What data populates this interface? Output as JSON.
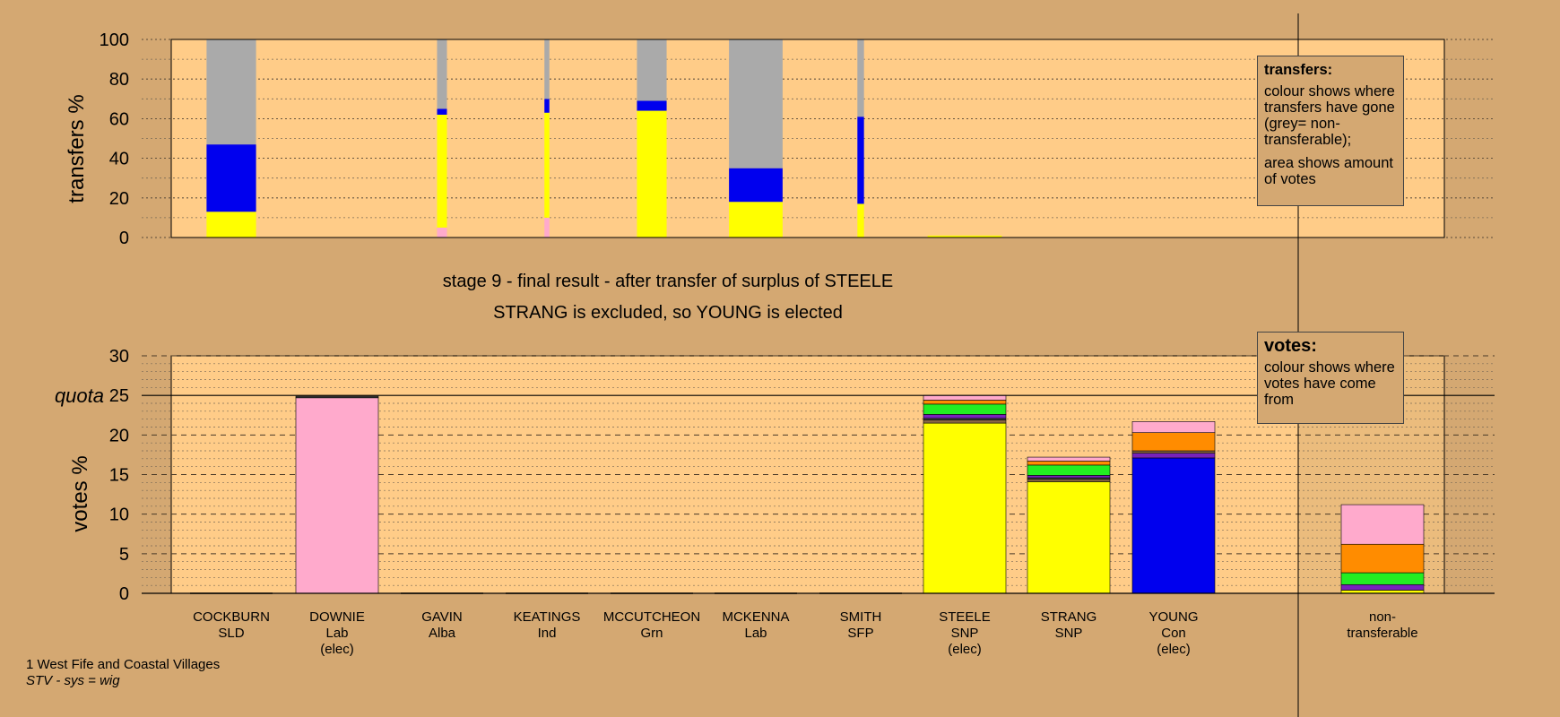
{
  "stage": {
    "title": "stage 9 - final result - after transfer of surplus of STEELE",
    "subtitle": "STRANG is excluded, so YOUNG is elected"
  },
  "legends": {
    "transfers": {
      "title": "transfers:",
      "para1": "colour shows where transfers have gone (grey= non-transferable);",
      "para2": "area shows amount of votes"
    },
    "votes": {
      "title": "votes:",
      "para1": "colour shows where votes have come from"
    }
  },
  "footer": {
    "ward": "1 West Fife and Coastal Villages",
    "system": "STV - sys = wig"
  },
  "colors": {
    "background": "#d4a872",
    "plot": "#ffcc88",
    "SNP": "#ffff00",
    "Lab": "#ffaacc",
    "Con": "#0000ee",
    "Grn": "#22ee22",
    "SLD": "#ff8c00",
    "Alba": "#7722bb",
    "Ind": "#886644",
    "SFP": "#444444",
    "nontransferable": "#aaaaaa"
  },
  "chart_data": [
    {
      "type": "bar",
      "name": "transfers",
      "ylabel": "transfers %",
      "ylim": [
        0,
        100
      ],
      "yticks": [
        0,
        20,
        40,
        60,
        80,
        100
      ],
      "grid": true,
      "columns": [
        {
          "name": "COCKBURN",
          "width_share": 0.6,
          "segments": [
            {
              "from": "SNP",
              "value": 13
            },
            {
              "from": "Con",
              "value": 34
            },
            {
              "from": "nontransferable",
              "value": 53
            }
          ]
        },
        {
          "name": "GAVIN",
          "width_share": 0.12,
          "segments": [
            {
              "from": "Lab",
              "value": 5
            },
            {
              "from": "SNP",
              "value": 57
            },
            {
              "from": "Con",
              "value": 3
            },
            {
              "from": "nontransferable",
              "value": 35
            }
          ]
        },
        {
          "name": "KEATINGS",
          "width_share": 0.06,
          "segments": [
            {
              "from": "Lab",
              "value": 10
            },
            {
              "from": "SNP",
              "value": 53
            },
            {
              "from": "Con",
              "value": 7
            },
            {
              "from": "nontransferable",
              "value": 30
            }
          ]
        },
        {
          "name": "MCCUTCHEON",
          "width_share": 0.36,
          "segments": [
            {
              "from": "SNP",
              "value": 64
            },
            {
              "from": "Con",
              "value": 5
            },
            {
              "from": "nontransferable",
              "value": 31
            }
          ]
        },
        {
          "name": "MCKENNA",
          "width_share": 0.65,
          "segments": [
            {
              "from": "SNP",
              "value": 18
            },
            {
              "from": "Con",
              "value": 17
            },
            {
              "from": "nontransferable",
              "value": 65
            }
          ]
        },
        {
          "name": "SMITH",
          "width_share": 0.08,
          "segments": [
            {
              "from": "SNP",
              "value": 17
            },
            {
              "from": "Con",
              "value": 44
            },
            {
              "from": "nontransferable",
              "value": 39
            }
          ]
        },
        {
          "name": "STEELE",
          "width_share": 0.9,
          "segments": [
            {
              "from": "SNP",
              "value": 1
            }
          ]
        }
      ]
    },
    {
      "type": "bar",
      "name": "votes",
      "ylabel": "votes %",
      "ylim": [
        0,
        30
      ],
      "yticks": [
        0,
        5,
        10,
        15,
        20,
        25,
        30
      ],
      "quota": 25,
      "quota_label": "quota",
      "candidates": [
        {
          "name": "COCKBURN",
          "party": "SLD",
          "note": "",
          "segments": []
        },
        {
          "name": "DOWNIE",
          "party": "Lab",
          "note": "(elec)",
          "segments": [
            {
              "from": "Lab",
              "value": 24.7
            },
            {
              "from": "SFP",
              "value": 0.2
            }
          ]
        },
        {
          "name": "GAVIN",
          "party": "Alba",
          "note": "",
          "segments": []
        },
        {
          "name": "KEATINGS",
          "party": "Ind",
          "note": "",
          "segments": []
        },
        {
          "name": "MCCUTCHEON",
          "party": "Grn",
          "note": "",
          "segments": []
        },
        {
          "name": "MCKENNA",
          "party": "Lab",
          "note": "",
          "segments": []
        },
        {
          "name": "SMITH",
          "party": "SFP",
          "note": "",
          "segments": []
        },
        {
          "name": "STEELE",
          "party": "SNP",
          "note": "(elec)",
          "segments": [
            {
              "from": "SNP",
              "value": 21.5
            },
            {
              "from": "Ind",
              "value": 0.4
            },
            {
              "from": "SFP",
              "value": 0.2
            },
            {
              "from": "Alba",
              "value": 0.5
            },
            {
              "from": "Grn",
              "value": 1.3
            },
            {
              "from": "SLD",
              "value": 0.5
            },
            {
              "from": "Lab",
              "value": 0.6
            }
          ]
        },
        {
          "name": "STRANG",
          "party": "SNP",
          "note": "",
          "segments": [
            {
              "from": "SNP",
              "value": 14.1
            },
            {
              "from": "Ind",
              "value": 0.3
            },
            {
              "from": "SFP",
              "value": 0.2
            },
            {
              "from": "Alba",
              "value": 0.3
            },
            {
              "from": "Grn",
              "value": 1.3
            },
            {
              "from": "SLD",
              "value": 0.5
            },
            {
              "from": "Lab",
              "value": 0.5
            }
          ]
        },
        {
          "name": "YOUNG",
          "party": "Con",
          "note": "(elec)",
          "segments": [
            {
              "from": "Con",
              "value": 17.1
            },
            {
              "from": "Alba",
              "value": 0.6
            },
            {
              "from": "Ind",
              "value": 0.3
            },
            {
              "from": "SLD",
              "value": 2.3
            },
            {
              "from": "Lab",
              "value": 1.4
            }
          ]
        },
        {
          "name": "non-transferable",
          "party": "",
          "note": "",
          "segments": [
            {
              "from": "SNP",
              "value": 0.4
            },
            {
              "from": "Alba",
              "value": 0.7
            },
            {
              "from": "Grn",
              "value": 1.5
            },
            {
              "from": "SLD",
              "value": 3.6
            },
            {
              "from": "Lab",
              "value": 5.0
            }
          ]
        }
      ]
    }
  ]
}
